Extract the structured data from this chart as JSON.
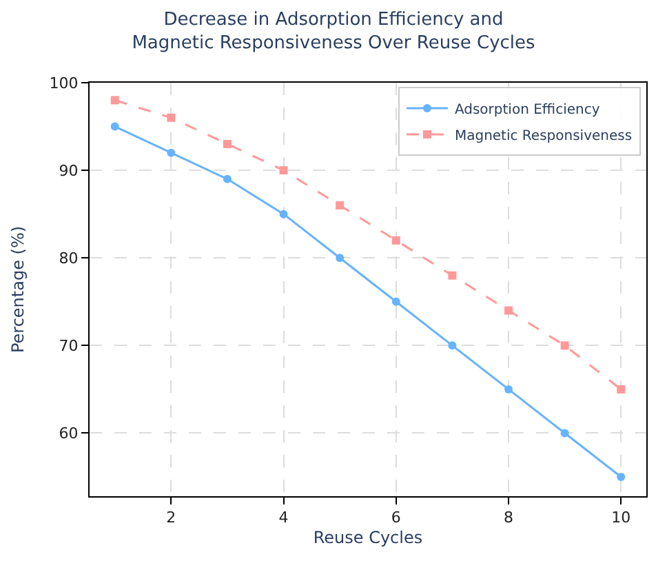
{
  "chart_data": {
    "type": "line",
    "title": "Decrease in Adsorption Efficiency and Magnetic Responsiveness Over Reuse Cycles",
    "xlabel": "Reuse Cycles",
    "ylabel": "Percentage (%)",
    "x": [
      1,
      2,
      3,
      4,
      5,
      6,
      7,
      8,
      9,
      10
    ],
    "series": [
      {
        "name": "Adsorption Efficiency",
        "color": "#66b3ff",
        "marker": "circle",
        "line_style": "solid",
        "values": [
          95,
          92,
          89,
          85,
          80,
          75,
          70,
          65,
          60,
          55
        ]
      },
      {
        "name": "Magnetic Responsiveness",
        "color": "#ff9999",
        "marker": "square",
        "line_style": "dashed",
        "values": [
          98,
          96,
          93,
          90,
          86,
          82,
          78,
          74,
          70,
          65
        ]
      }
    ],
    "xlim": [
      0.55,
      10.45
    ],
    "xticks": [
      2,
      4,
      6,
      8,
      10
    ],
    "ylim": [
      52.8,
      100
    ],
    "yticks": [
      60,
      70,
      80,
      90,
      100
    ],
    "grid": true,
    "legend": "top right"
  }
}
